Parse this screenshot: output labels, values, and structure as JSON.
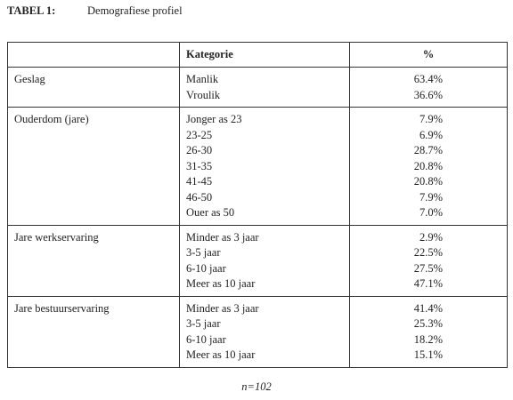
{
  "caption": {
    "label": "TABEL 1:",
    "title": "Demografiese profiel"
  },
  "table": {
    "header": [
      "Kategorie",
      "%"
    ],
    "groups": [
      {
        "name": "Geslag",
        "rows": [
          [
            "Manlik",
            "63.4%"
          ],
          [
            "Vroulik",
            "36.6%"
          ]
        ]
      },
      {
        "name": "Ouderdom (jare)",
        "rows": [
          [
            "Jonger as 23",
            "7.9%"
          ],
          [
            "23-25",
            "6.9%"
          ],
          [
            "26-30",
            "28.7%"
          ],
          [
            "31-35",
            "20.8%"
          ],
          [
            "41-45",
            "20.8%"
          ],
          [
            "46-50",
            "7.9%"
          ],
          [
            "Ouer as 50",
            "7.0%"
          ]
        ]
      },
      {
        "name": "Jare werkservaring",
        "rows": [
          [
            "Minder as 3 jaar",
            "2.9%"
          ],
          [
            "3-5 jaar",
            "22.5%"
          ],
          [
            "6-10 jaar",
            "27.5%"
          ],
          [
            "Meer as 10 jaar",
            "47.1%"
          ]
        ]
      },
      {
        "name": "Jare bestuurservaring",
        "rows": [
          [
            "Minder as 3 jaar",
            "41.4%"
          ],
          [
            "3-5 jaar",
            "25.3%"
          ],
          [
            "6-10 jaar",
            "18.2%"
          ],
          [
            "Meer as 10 jaar",
            "15.1%"
          ]
        ]
      }
    ]
  },
  "footer": "n=102"
}
